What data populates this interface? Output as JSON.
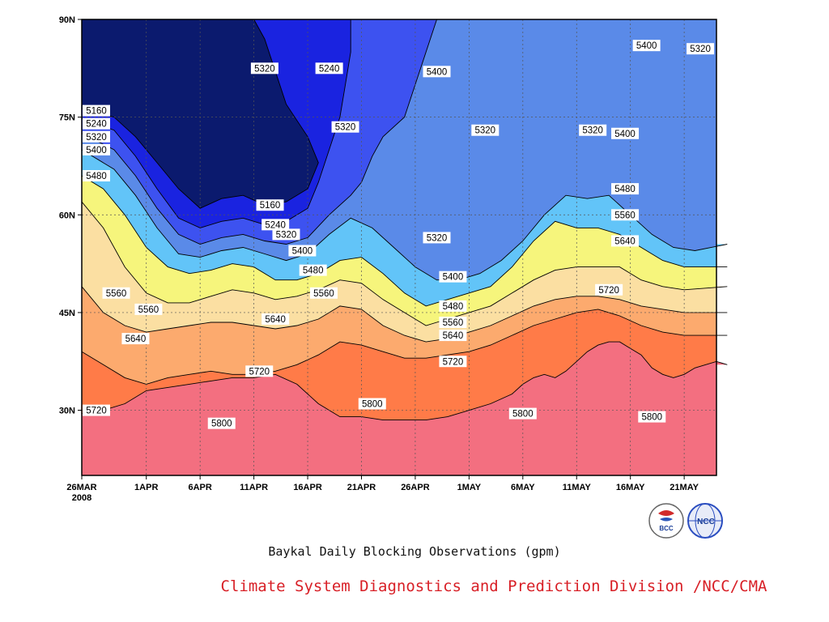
{
  "chart_data": {
    "type": "heatmap",
    "subtitle": "Baykal Daily Blocking Observations (gpm)",
    "credit": "Climate System Diagnostics and Prediction Division /NCC/CMA",
    "x_dates": [
      "26MAR",
      "1APR",
      "6APR",
      "11APR",
      "16APR",
      "21APR",
      "26APR",
      "1MAY",
      "6MAY",
      "11MAY",
      "16MAY",
      "21MAY"
    ],
    "year_label": "2008",
    "x_day_index": [
      0,
      6,
      11,
      16,
      21,
      26,
      31,
      36,
      41,
      46,
      51,
      56
    ],
    "x_range_days": [
      0,
      59
    ],
    "y_ticks": [
      "30N",
      "45N",
      "60N",
      "75N",
      "90N"
    ],
    "y_values": [
      30,
      45,
      60,
      75,
      90
    ],
    "y_range": [
      20,
      90
    ],
    "grid": true,
    "contour_levels": [
      5160,
      5240,
      5320,
      5400,
      5480,
      5560,
      5640,
      5720,
      5800
    ],
    "fill_colors": [
      "#0b1a6e",
      "#1a23e0",
      "#3d52f0",
      "#5a8ae8",
      "#62c4f8",
      "#f6f57c",
      "#fbdfa2",
      "#fcaa6e",
      "#ff7b48",
      "#f36f80"
    ],
    "contour_lines": [
      {
        "level": 5160,
        "pts": [
          [
            0,
            76.3
          ],
          [
            3,
            75
          ],
          [
            5,
            72
          ],
          [
            7,
            68
          ],
          [
            9,
            64
          ],
          [
            11,
            61
          ],
          [
            13,
            62.5
          ],
          [
            15,
            63
          ],
          [
            17,
            61.5
          ],
          [
            19,
            62
          ],
          [
            21,
            64
          ],
          [
            22,
            68
          ],
          [
            21,
            72
          ],
          [
            19,
            77
          ],
          [
            18,
            82
          ],
          [
            17,
            87
          ],
          [
            16,
            90
          ]
        ]
      },
      {
        "level": 5240,
        "pts": [
          [
            0,
            74.8
          ],
          [
            3,
            73
          ],
          [
            5,
            69
          ],
          [
            7,
            64
          ],
          [
            9,
            59.5
          ],
          [
            11,
            58
          ],
          [
            13,
            59
          ],
          [
            15,
            59.5
          ],
          [
            17,
            58.5
          ],
          [
            19,
            59
          ],
          [
            21,
            61
          ],
          [
            22,
            65
          ],
          [
            23,
            70
          ],
          [
            24,
            75
          ],
          [
            24.5,
            80
          ],
          [
            25,
            85
          ],
          [
            25,
            90
          ]
        ]
      },
      {
        "level": 5320,
        "pts": [
          [
            0,
            72.5
          ],
          [
            3,
            70
          ],
          [
            5,
            66
          ],
          [
            7,
            61
          ],
          [
            9,
            57
          ],
          [
            11,
            55.5
          ],
          [
            13,
            56.5
          ],
          [
            15,
            57
          ],
          [
            17,
            56
          ],
          [
            19,
            55.5
          ],
          [
            21,
            56.5
          ],
          [
            23,
            60
          ],
          [
            25,
            63
          ],
          [
            26,
            65
          ],
          [
            27,
            69
          ],
          [
            28,
            72
          ],
          [
            30,
            75
          ],
          [
            31,
            80
          ],
          [
            32,
            85
          ],
          [
            33,
            90
          ]
        ]
      },
      {
        "level": 5400,
        "pts": [
          [
            0,
            70
          ],
          [
            3,
            67
          ],
          [
            5,
            63
          ],
          [
            7,
            58
          ],
          [
            9,
            54
          ],
          [
            11,
            53.5
          ],
          [
            13,
            54.5
          ],
          [
            15,
            55
          ],
          [
            17,
            54
          ],
          [
            19,
            53
          ],
          [
            21,
            54
          ],
          [
            23,
            57
          ],
          [
            25,
            59.5
          ],
          [
            27,
            58
          ],
          [
            29,
            55
          ],
          [
            31,
            52
          ],
          [
            33,
            50
          ],
          [
            35,
            50
          ],
          [
            37,
            51
          ],
          [
            39,
            53
          ],
          [
            41,
            56
          ],
          [
            43,
            60
          ],
          [
            45,
            63
          ],
          [
            47,
            62.5
          ],
          [
            49,
            63
          ],
          [
            51,
            60
          ],
          [
            53,
            57
          ],
          [
            55,
            55
          ],
          [
            57,
            54.5
          ],
          [
            60,
            55.5
          ]
        ]
      },
      {
        "level": 5480,
        "pts": [
          [
            0,
            66
          ],
          [
            2,
            64
          ],
          [
            4,
            60
          ],
          [
            6,
            55
          ],
          [
            8,
            52
          ],
          [
            10,
            51
          ],
          [
            12,
            51.5
          ],
          [
            14,
            52.5
          ],
          [
            16,
            52
          ],
          [
            18,
            50
          ],
          [
            20,
            50
          ],
          [
            22,
            51
          ],
          [
            24,
            53
          ],
          [
            26,
            53.5
          ],
          [
            28,
            51
          ],
          [
            30,
            48
          ],
          [
            32,
            46
          ],
          [
            34,
            47
          ],
          [
            36,
            48
          ],
          [
            38,
            49
          ],
          [
            40,
            52
          ],
          [
            42,
            56
          ],
          [
            44,
            59
          ],
          [
            46,
            58
          ],
          [
            48,
            58
          ],
          [
            50,
            57
          ],
          [
            52,
            55
          ],
          [
            54,
            53
          ],
          [
            56,
            52
          ],
          [
            60,
            52
          ]
        ]
      },
      {
        "level": 5560,
        "pts": [
          [
            0,
            62
          ],
          [
            2,
            58
          ],
          [
            4,
            52
          ],
          [
            6,
            48
          ],
          [
            8,
            46.5
          ],
          [
            10,
            46.5
          ],
          [
            12,
            47.5
          ],
          [
            14,
            48.5
          ],
          [
            16,
            48
          ],
          [
            18,
            47
          ],
          [
            20,
            47.5
          ],
          [
            22,
            48.5
          ],
          [
            24,
            50
          ],
          [
            26,
            49.5
          ],
          [
            28,
            47
          ],
          [
            30,
            45
          ],
          [
            32,
            43
          ],
          [
            34,
            44
          ],
          [
            36,
            45
          ],
          [
            38,
            46
          ],
          [
            40,
            48
          ],
          [
            42,
            50
          ],
          [
            44,
            51.5
          ],
          [
            46,
            52
          ],
          [
            48,
            52
          ],
          [
            50,
            52
          ],
          [
            52,
            50
          ],
          [
            54,
            49
          ],
          [
            56,
            48.5
          ],
          [
            60,
            49
          ]
        ]
      },
      {
        "level": 5640,
        "pts": [
          [
            0,
            49
          ],
          [
            2,
            45
          ],
          [
            4,
            43
          ],
          [
            6,
            42
          ],
          [
            8,
            42.5
          ],
          [
            10,
            43
          ],
          [
            12,
            43.5
          ],
          [
            14,
            43.5
          ],
          [
            16,
            43
          ],
          [
            18,
            42.5
          ],
          [
            20,
            43
          ],
          [
            22,
            44
          ],
          [
            24,
            46
          ],
          [
            26,
            45.5
          ],
          [
            28,
            43
          ],
          [
            30,
            41.5
          ],
          [
            32,
            40.5
          ],
          [
            34,
            41
          ],
          [
            36,
            42
          ],
          [
            38,
            43
          ],
          [
            40,
            44.5
          ],
          [
            42,
            46
          ],
          [
            44,
            47
          ],
          [
            46,
            47.5
          ],
          [
            48,
            47.5
          ],
          [
            50,
            47
          ],
          [
            52,
            46
          ],
          [
            54,
            45.5
          ],
          [
            56,
            45
          ],
          [
            60,
            45
          ]
        ]
      },
      {
        "level": 5720,
        "pts": [
          [
            0,
            39
          ],
          [
            2,
            37
          ],
          [
            4,
            35
          ],
          [
            6,
            34
          ],
          [
            8,
            35
          ],
          [
            10,
            35.5
          ],
          [
            12,
            36
          ],
          [
            14,
            35.5
          ],
          [
            16,
            35.5
          ],
          [
            18,
            36
          ],
          [
            20,
            37
          ],
          [
            22,
            38.5
          ],
          [
            24,
            40.5
          ],
          [
            26,
            40
          ],
          [
            28,
            39
          ],
          [
            30,
            38
          ],
          [
            32,
            38
          ],
          [
            34,
            38.5
          ],
          [
            36,
            39
          ],
          [
            38,
            40
          ],
          [
            40,
            41.5
          ],
          [
            42,
            43
          ],
          [
            44,
            44
          ],
          [
            46,
            45
          ],
          [
            48,
            45.5
          ],
          [
            50,
            44.5
          ],
          [
            52,
            43
          ],
          [
            54,
            42
          ],
          [
            56,
            41.5
          ],
          [
            60,
            41.5
          ]
        ]
      },
      {
        "level": 5800,
        "pts": [
          [
            0,
            29.5
          ],
          [
            2,
            30
          ],
          [
            4,
            31
          ],
          [
            6,
            33
          ],
          [
            8,
            33.5
          ],
          [
            10,
            34
          ],
          [
            12,
            34.5
          ],
          [
            14,
            35
          ],
          [
            16,
            35
          ],
          [
            18,
            35.5
          ],
          [
            20,
            34
          ],
          [
            22,
            31
          ],
          [
            24,
            29
          ],
          [
            26,
            29
          ],
          [
            28,
            28.5
          ],
          [
            30,
            28.5
          ],
          [
            32,
            28.5
          ],
          [
            34,
            29
          ],
          [
            36,
            30
          ],
          [
            38,
            31
          ],
          [
            40,
            32.5
          ],
          [
            41,
            34
          ],
          [
            42,
            35
          ],
          [
            43,
            35.5
          ],
          [
            44,
            35
          ],
          [
            45,
            36
          ],
          [
            46,
            37.5
          ],
          [
            47,
            39
          ],
          [
            48,
            40
          ],
          [
            49,
            40.5
          ],
          [
            50,
            40.5
          ],
          [
            51,
            39.5
          ],
          [
            52,
            38.5
          ],
          [
            53,
            36.5
          ],
          [
            54,
            35.5
          ],
          [
            55,
            35
          ],
          [
            56,
            35.5
          ],
          [
            57,
            36.5
          ],
          [
            58,
            37
          ],
          [
            59,
            37.5
          ],
          [
            60,
            37
          ]
        ]
      }
    ],
    "contour_labels": [
      {
        "text": "5160",
        "x": 0.4,
        "y": 76
      },
      {
        "text": "5240",
        "x": 0.4,
        "y": 74
      },
      {
        "text": "5320",
        "x": 0.4,
        "y": 72
      },
      {
        "text": "5400",
        "x": 0.4,
        "y": 70
      },
      {
        "text": "5480",
        "x": 0.4,
        "y": 66
      },
      {
        "text": "5320",
        "x": 17,
        "y": 82.5
      },
      {
        "text": "5240",
        "x": 23,
        "y": 82.5
      },
      {
        "text": "5320",
        "x": 24.5,
        "y": 73.5
      },
      {
        "text": "5160",
        "x": 17.5,
        "y": 61.5
      },
      {
        "text": "5240",
        "x": 18,
        "y": 58.5
      },
      {
        "text": "5320",
        "x": 19,
        "y": 57
      },
      {
        "text": "5400",
        "x": 20.5,
        "y": 54.5
      },
      {
        "text": "5480",
        "x": 21.5,
        "y": 51.5
      },
      {
        "text": "5560",
        "x": 22.5,
        "y": 48
      },
      {
        "text": "5400",
        "x": 33,
        "y": 82
      },
      {
        "text": "5320",
        "x": 37.5,
        "y": 73
      },
      {
        "text": "5320",
        "x": 33,
        "y": 56.5
      },
      {
        "text": "5400",
        "x": 34.5,
        "y": 50.5
      },
      {
        "text": "5480",
        "x": 34.5,
        "y": 46
      },
      {
        "text": "5560",
        "x": 34.5,
        "y": 43.5
      },
      {
        "text": "5640",
        "x": 34.5,
        "y": 41.5
      },
      {
        "text": "5720",
        "x": 34.5,
        "y": 37.5
      },
      {
        "text": "5320",
        "x": 47.5,
        "y": 73
      },
      {
        "text": "5400",
        "x": 50.5,
        "y": 72.5
      },
      {
        "text": "5480",
        "x": 50.5,
        "y": 64
      },
      {
        "text": "5560",
        "x": 50.5,
        "y": 60
      },
      {
        "text": "5640",
        "x": 50.5,
        "y": 56
      },
      {
        "text": "5720",
        "x": 49,
        "y": 48.5
      },
      {
        "text": "5400",
        "x": 52.5,
        "y": 86
      },
      {
        "text": "5320",
        "x": 57.5,
        "y": 85.5
      },
      {
        "text": "5560",
        "x": 3.2,
        "y": 48
      },
      {
        "text": "5560",
        "x": 6.2,
        "y": 45.5
      },
      {
        "text": "5640",
        "x": 5,
        "y": 41
      },
      {
        "text": "5720",
        "x": 0.4,
        "y": 30
      },
      {
        "text": "5720",
        "x": 16.5,
        "y": 36
      },
      {
        "text": "5640",
        "x": 18,
        "y": 44
      },
      {
        "text": "5800",
        "x": 13,
        "y": 28
      },
      {
        "text": "5800",
        "x": 27,
        "y": 31
      },
      {
        "text": "5800",
        "x": 41,
        "y": 29.5
      },
      {
        "text": "5800",
        "x": 53,
        "y": 29
      }
    ]
  }
}
